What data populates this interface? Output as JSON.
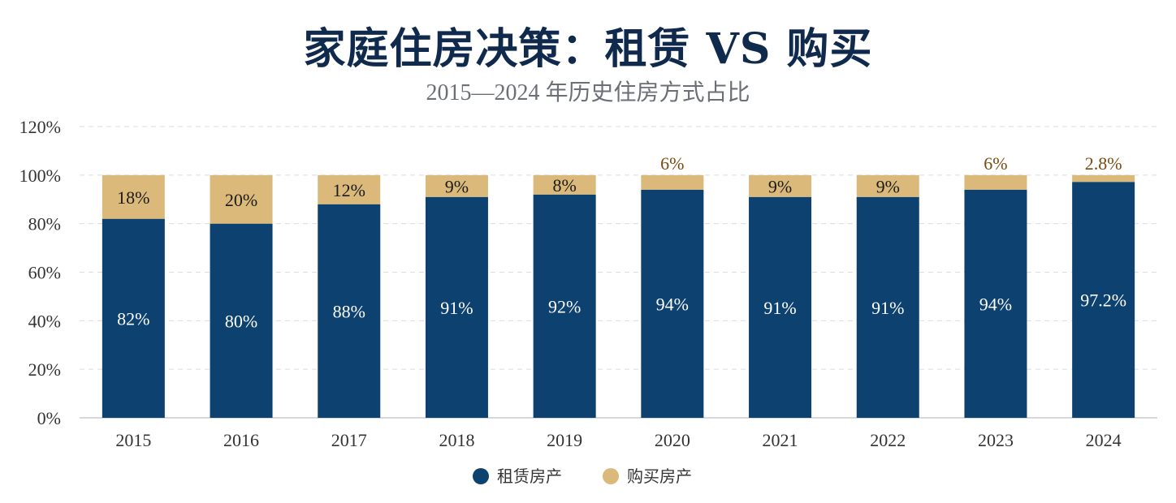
{
  "chart_data": {
    "type": "bar",
    "stacked": true,
    "title": "家庭住房决策：租赁 VS 购买",
    "subtitle": "2015—2024 年历史住房方式占比",
    "categories": [
      "2015",
      "2016",
      "2017",
      "2018",
      "2019",
      "2020",
      "2021",
      "2022",
      "2023",
      "2024"
    ],
    "series": [
      {
        "name": "租赁房产",
        "color": "#0d4170",
        "values": [
          82,
          80,
          88,
          91,
          92,
          94,
          91,
          91,
          94,
          97.2
        ],
        "labels": [
          "82%",
          "80%",
          "88%",
          "91%",
          "92%",
          "94%",
          "91%",
          "91%",
          "94%",
          "97.2%"
        ]
      },
      {
        "name": "购买房产",
        "color": "#dab97a",
        "values": [
          18,
          20,
          12,
          9,
          8,
          6,
          9,
          9,
          6,
          2.8
        ],
        "labels": [
          "18%",
          "20%",
          "12%",
          "9%",
          "8%",
          "6%",
          "9%",
          "9%",
          "6%",
          "2.8%"
        ]
      }
    ],
    "y_ticks": [
      "0%",
      "20%",
      "40%",
      "60%",
      "80%",
      "100%",
      "120%"
    ],
    "ylim": [
      0,
      120
    ],
    "grid": true,
    "legend_position": "bottom"
  }
}
